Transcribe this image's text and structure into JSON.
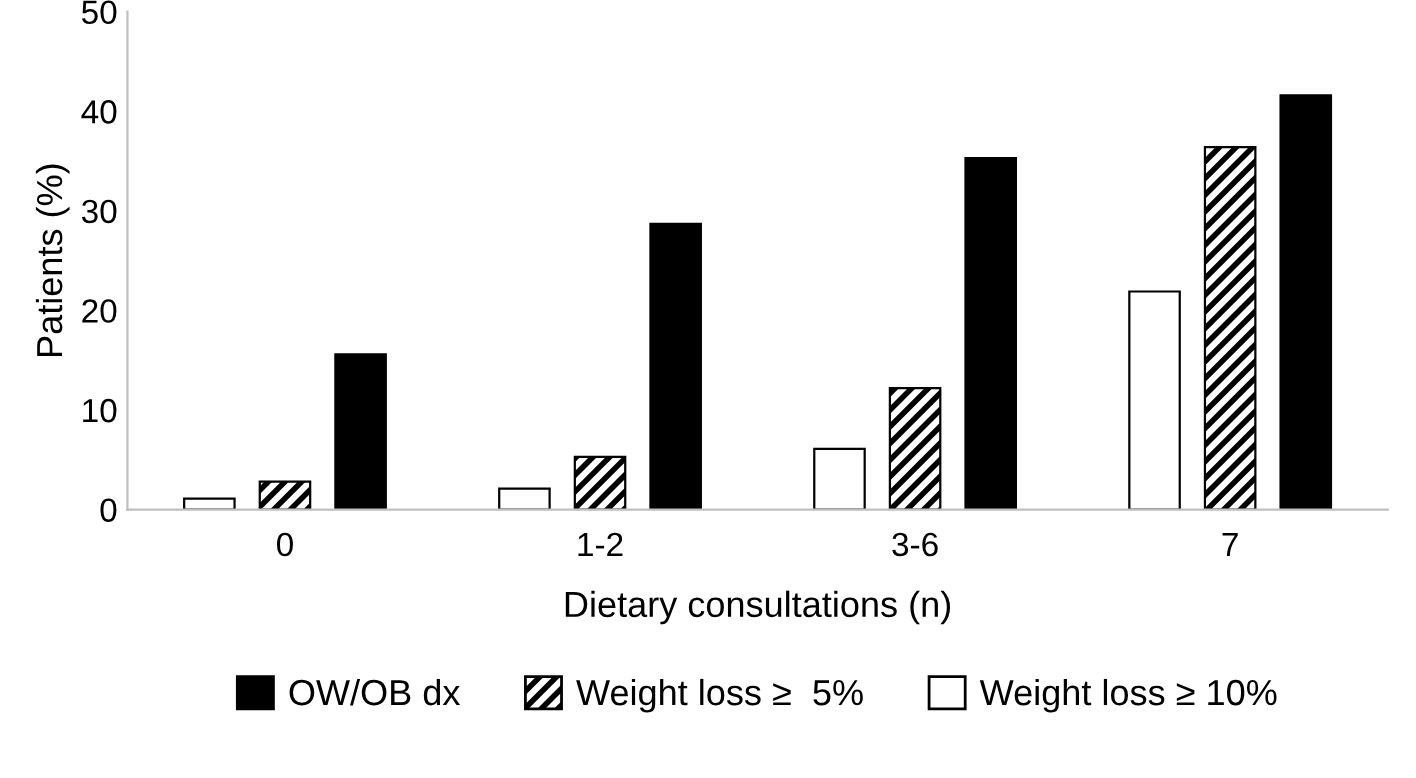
{
  "chart_data": {
    "type": "bar",
    "xlabel": "Dietary consultations (n)",
    "ylabel": "Patients (%)",
    "categories": [
      "0",
      "1-2",
      "3-6",
      "7"
    ],
    "series": [
      {
        "name": "Weight loss ≥ 10%",
        "color": "#ffffff",
        "values": [
          1.1,
          2.1,
          6.1,
          21.9
        ]
      },
      {
        "name": "Weight loss ≥  5%",
        "color": "#000000",
        "values": [
          2.8,
          5.3,
          12.2,
          36.4
        ]
      },
      {
        "name": "OW/OB dx",
        "color": "#000000",
        "values": [
          15.6,
          28.7,
          35.3,
          41.6
        ]
      }
    ],
    "ylim": [
      0,
      50
    ],
    "yticks": [
      0,
      10,
      20,
      30,
      40,
      50
    ],
    "grid": false,
    "legend": "bottom"
  }
}
